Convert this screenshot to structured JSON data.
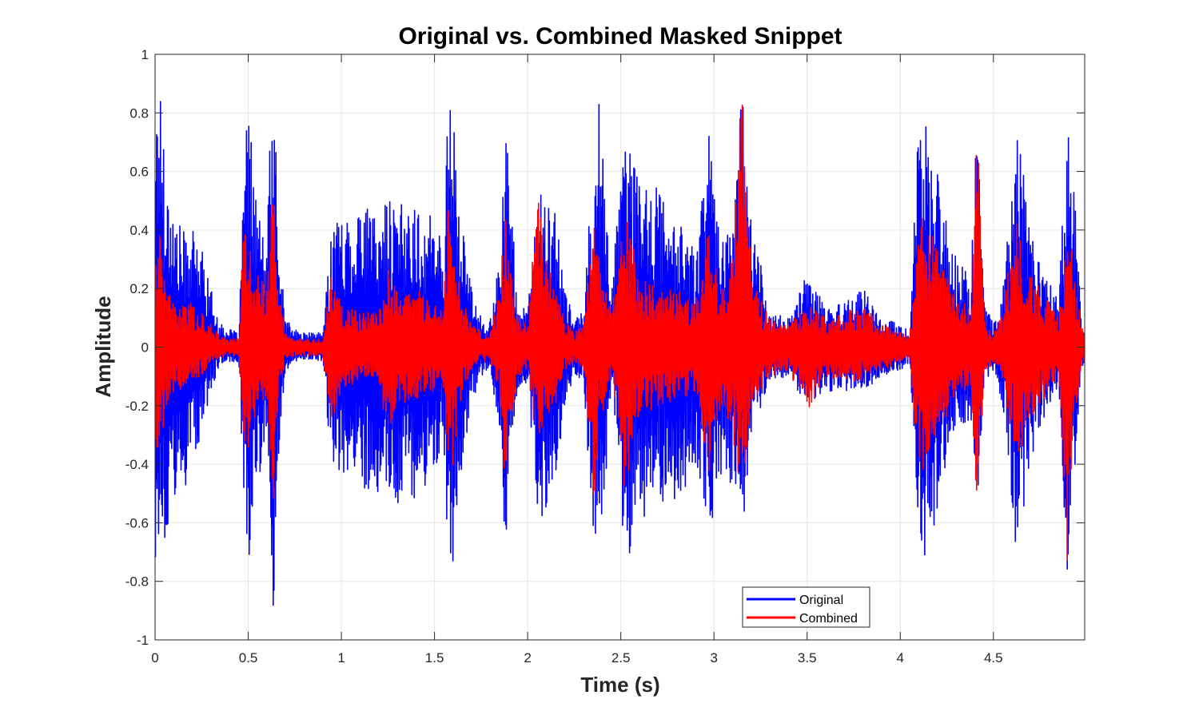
{
  "chart_data": {
    "type": "line",
    "title": "Original vs. Combined Masked Snippet",
    "xlabel": "Time (s)",
    "ylabel": "Amplitude",
    "xlim": [
      0,
      4.99
    ],
    "ylim": [
      -1,
      1
    ],
    "grid": true,
    "legend_position": "bottom-right",
    "x_ticks": [
      0,
      0.5,
      1,
      1.5,
      2,
      2.5,
      3,
      3.5,
      4,
      4.5
    ],
    "x_tick_labels": [
      "0",
      "0.5",
      "1",
      "1.5",
      "2",
      "2.5",
      "3",
      "3.5",
      "4",
      "4.5"
    ],
    "y_ticks": [
      1,
      0.8,
      0.6,
      0.4,
      0.2,
      0,
      -0.2,
      -0.4,
      -0.6,
      -0.8,
      -1
    ],
    "y_tick_labels": [
      "1",
      "0.8",
      "0.6",
      "0.4",
      "0.2",
      "0",
      "-0.2",
      "-0.4",
      "-0.6",
      "-0.8",
      "-1"
    ],
    "series": [
      {
        "name": "Original",
        "color": "#0000ff",
        "envelope": {
          "t": [
            0,
            0.02,
            0.04,
            0.06,
            0.1,
            0.15,
            0.2,
            0.25,
            0.3,
            0.35,
            0.4,
            0.45,
            0.48,
            0.5,
            0.55,
            0.6,
            0.62,
            0.64,
            0.66,
            0.7,
            0.75,
            0.8,
            0.85,
            0.9,
            0.95,
            1.0,
            1.1,
            1.2,
            1.25,
            1.3,
            1.4,
            1.5,
            1.55,
            1.57,
            1.6,
            1.65,
            1.7,
            1.75,
            1.8,
            1.85,
            1.88,
            1.9,
            1.95,
            2.0,
            2.05,
            2.1,
            2.15,
            2.2,
            2.25,
            2.3,
            2.36,
            2.38,
            2.45,
            2.5,
            2.52,
            2.55,
            2.6,
            2.7,
            2.8,
            2.9,
            2.98,
            3.0,
            3.05,
            3.1,
            3.15,
            3.2,
            3.3,
            3.4,
            3.5,
            3.6,
            3.7,
            3.8,
            3.9,
            4.0,
            4.05,
            4.1,
            4.12,
            4.2,
            4.3,
            4.38,
            4.41,
            4.45,
            4.5,
            4.55,
            4.62,
            4.65,
            4.7,
            4.75,
            4.8,
            4.85,
            4.9,
            4.93,
            4.97,
            4.99
          ],
          "max": [
            0.85,
            0.95,
            0.85,
            0.6,
            0.45,
            0.4,
            0.4,
            0.35,
            0.2,
            0.08,
            0.06,
            0.05,
            0.7,
            0.8,
            0.5,
            0.3,
            0.85,
            0.9,
            0.4,
            0.1,
            0.06,
            0.05,
            0.05,
            0.05,
            0.45,
            0.45,
            0.5,
            0.45,
            0.52,
            0.5,
            0.48,
            0.45,
            0.35,
            0.9,
            0.8,
            0.4,
            0.2,
            0.1,
            0.1,
            0.3,
            0.9,
            0.6,
            0.15,
            0.12,
            0.5,
            0.55,
            0.45,
            0.2,
            0.1,
            0.12,
            0.75,
            0.88,
            0.2,
            0.6,
            0.75,
            0.7,
            0.55,
            0.55,
            0.45,
            0.35,
            0.8,
            0.65,
            0.4,
            0.45,
            0.99,
            0.45,
            0.12,
            0.1,
            0.25,
            0.15,
            0.15,
            0.2,
            0.1,
            0.08,
            0.05,
            0.8,
            0.8,
            0.65,
            0.3,
            0.25,
            0.85,
            0.15,
            0.08,
            0.2,
            0.75,
            0.65,
            0.45,
            0.35,
            0.25,
            0.15,
            0.85,
            0.6,
            0.1,
            0.05
          ],
          "min": [
            -0.8,
            -0.9,
            -0.7,
            -0.8,
            -0.6,
            -0.5,
            -0.4,
            -0.3,
            -0.15,
            -0.06,
            -0.05,
            -0.05,
            -0.6,
            -0.82,
            -0.5,
            -0.3,
            -0.85,
            -0.95,
            -0.4,
            -0.08,
            -0.05,
            -0.05,
            -0.04,
            -0.05,
            -0.45,
            -0.42,
            -0.48,
            -0.5,
            -0.5,
            -0.55,
            -0.52,
            -0.45,
            -0.3,
            -0.85,
            -0.75,
            -0.4,
            -0.2,
            -0.1,
            -0.08,
            -0.3,
            -0.75,
            -0.4,
            -0.15,
            -0.12,
            -0.55,
            -0.65,
            -0.45,
            -0.2,
            -0.1,
            -0.12,
            -0.75,
            -0.85,
            -0.15,
            -0.55,
            -0.7,
            -0.72,
            -0.6,
            -0.55,
            -0.55,
            -0.4,
            -0.7,
            -0.65,
            -0.4,
            -0.5,
            -0.65,
            -0.3,
            -0.12,
            -0.1,
            -0.2,
            -0.15,
            -0.15,
            -0.15,
            -0.1,
            -0.08,
            -0.05,
            -0.7,
            -0.75,
            -0.6,
            -0.3,
            -0.25,
            -0.6,
            -0.15,
            -0.08,
            -0.2,
            -0.7,
            -0.6,
            -0.4,
            -0.3,
            -0.2,
            -0.15,
            -0.82,
            -0.5,
            -0.1,
            -0.05
          ]
        }
      },
      {
        "name": "Combined",
        "color": "#ff0000",
        "envelope": {
          "t": [
            0,
            0.02,
            0.04,
            0.06,
            0.1,
            0.15,
            0.2,
            0.25,
            0.3,
            0.35,
            0.4,
            0.45,
            0.48,
            0.5,
            0.55,
            0.6,
            0.62,
            0.64,
            0.66,
            0.7,
            0.75,
            0.8,
            0.85,
            0.9,
            0.95,
            1.0,
            1.1,
            1.2,
            1.25,
            1.3,
            1.4,
            1.5,
            1.55,
            1.57,
            1.6,
            1.65,
            1.7,
            1.75,
            1.8,
            1.85,
            1.88,
            1.9,
            1.95,
            2.0,
            2.05,
            2.1,
            2.15,
            2.2,
            2.25,
            2.3,
            2.36,
            2.38,
            2.45,
            2.5,
            2.52,
            2.55,
            2.6,
            2.7,
            2.8,
            2.9,
            2.98,
            3.0,
            3.05,
            3.1,
            3.15,
            3.2,
            3.3,
            3.4,
            3.5,
            3.6,
            3.7,
            3.8,
            3.9,
            4.0,
            4.05,
            4.1,
            4.12,
            4.2,
            4.3,
            4.38,
            4.41,
            4.45,
            4.5,
            4.55,
            4.62,
            4.65,
            4.7,
            4.75,
            4.8,
            4.85,
            4.9,
            4.93,
            4.97,
            4.99
          ],
          "max": [
            0.35,
            0.45,
            0.3,
            0.2,
            0.15,
            0.15,
            0.15,
            0.12,
            0.08,
            0.04,
            0.03,
            0.03,
            0.48,
            0.35,
            0.25,
            0.2,
            0.5,
            0.5,
            0.2,
            0.05,
            0.03,
            0.03,
            0.03,
            0.03,
            0.27,
            0.15,
            0.12,
            0.12,
            0.28,
            0.2,
            0.2,
            0.15,
            0.15,
            0.5,
            0.4,
            0.15,
            0.1,
            0.05,
            0.05,
            0.2,
            0.48,
            0.3,
            0.1,
            0.08,
            0.6,
            0.35,
            0.2,
            0.1,
            0.05,
            0.08,
            0.46,
            0.32,
            0.12,
            0.35,
            0.47,
            0.4,
            0.25,
            0.2,
            0.2,
            0.15,
            0.45,
            0.3,
            0.2,
            0.3,
            0.98,
            0.25,
            0.1,
            0.08,
            0.15,
            0.1,
            0.12,
            0.15,
            0.08,
            0.05,
            0.04,
            0.4,
            0.48,
            0.35,
            0.15,
            0.15,
            0.82,
            0.1,
            0.05,
            0.12,
            0.45,
            0.35,
            0.25,
            0.2,
            0.15,
            0.1,
            0.42,
            0.3,
            0.08,
            0.04
          ],
          "min": [
            -0.3,
            -0.45,
            -0.3,
            -0.2,
            -0.15,
            -0.15,
            -0.12,
            -0.1,
            -0.06,
            -0.04,
            -0.03,
            -0.03,
            -0.35,
            -0.35,
            -0.2,
            -0.2,
            -0.45,
            -0.56,
            -0.18,
            -0.04,
            -0.03,
            -0.03,
            -0.03,
            -0.03,
            -0.3,
            -0.15,
            -0.12,
            -0.12,
            -0.32,
            -0.2,
            -0.18,
            -0.15,
            -0.15,
            -0.45,
            -0.4,
            -0.15,
            -0.08,
            -0.05,
            -0.05,
            -0.2,
            -0.55,
            -0.3,
            -0.1,
            -0.08,
            -0.35,
            -0.3,
            -0.2,
            -0.08,
            -0.05,
            -0.08,
            -0.64,
            -0.3,
            -0.1,
            -0.3,
            -0.5,
            -0.4,
            -0.25,
            -0.2,
            -0.2,
            -0.15,
            -0.45,
            -0.3,
            -0.2,
            -0.3,
            -0.55,
            -0.2,
            -0.1,
            -0.08,
            -0.22,
            -0.1,
            -0.12,
            -0.12,
            -0.08,
            -0.05,
            -0.04,
            -0.45,
            -0.45,
            -0.35,
            -0.15,
            -0.15,
            -0.63,
            -0.1,
            -0.05,
            -0.12,
            -0.4,
            -0.35,
            -0.25,
            -0.2,
            -0.15,
            -0.1,
            -0.78,
            -0.3,
            -0.08,
            -0.04
          ]
        }
      }
    ]
  }
}
